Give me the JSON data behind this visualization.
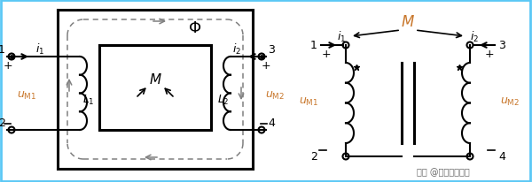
{
  "bg_color": "#ffffff",
  "border_color": "#5bc8f5",
  "text_color_black": "#000000",
  "text_color_orange": "#c8762a",
  "fig_width": 6.0,
  "fig_height": 2.07,
  "watermark": "头条 @技成电工课堂"
}
